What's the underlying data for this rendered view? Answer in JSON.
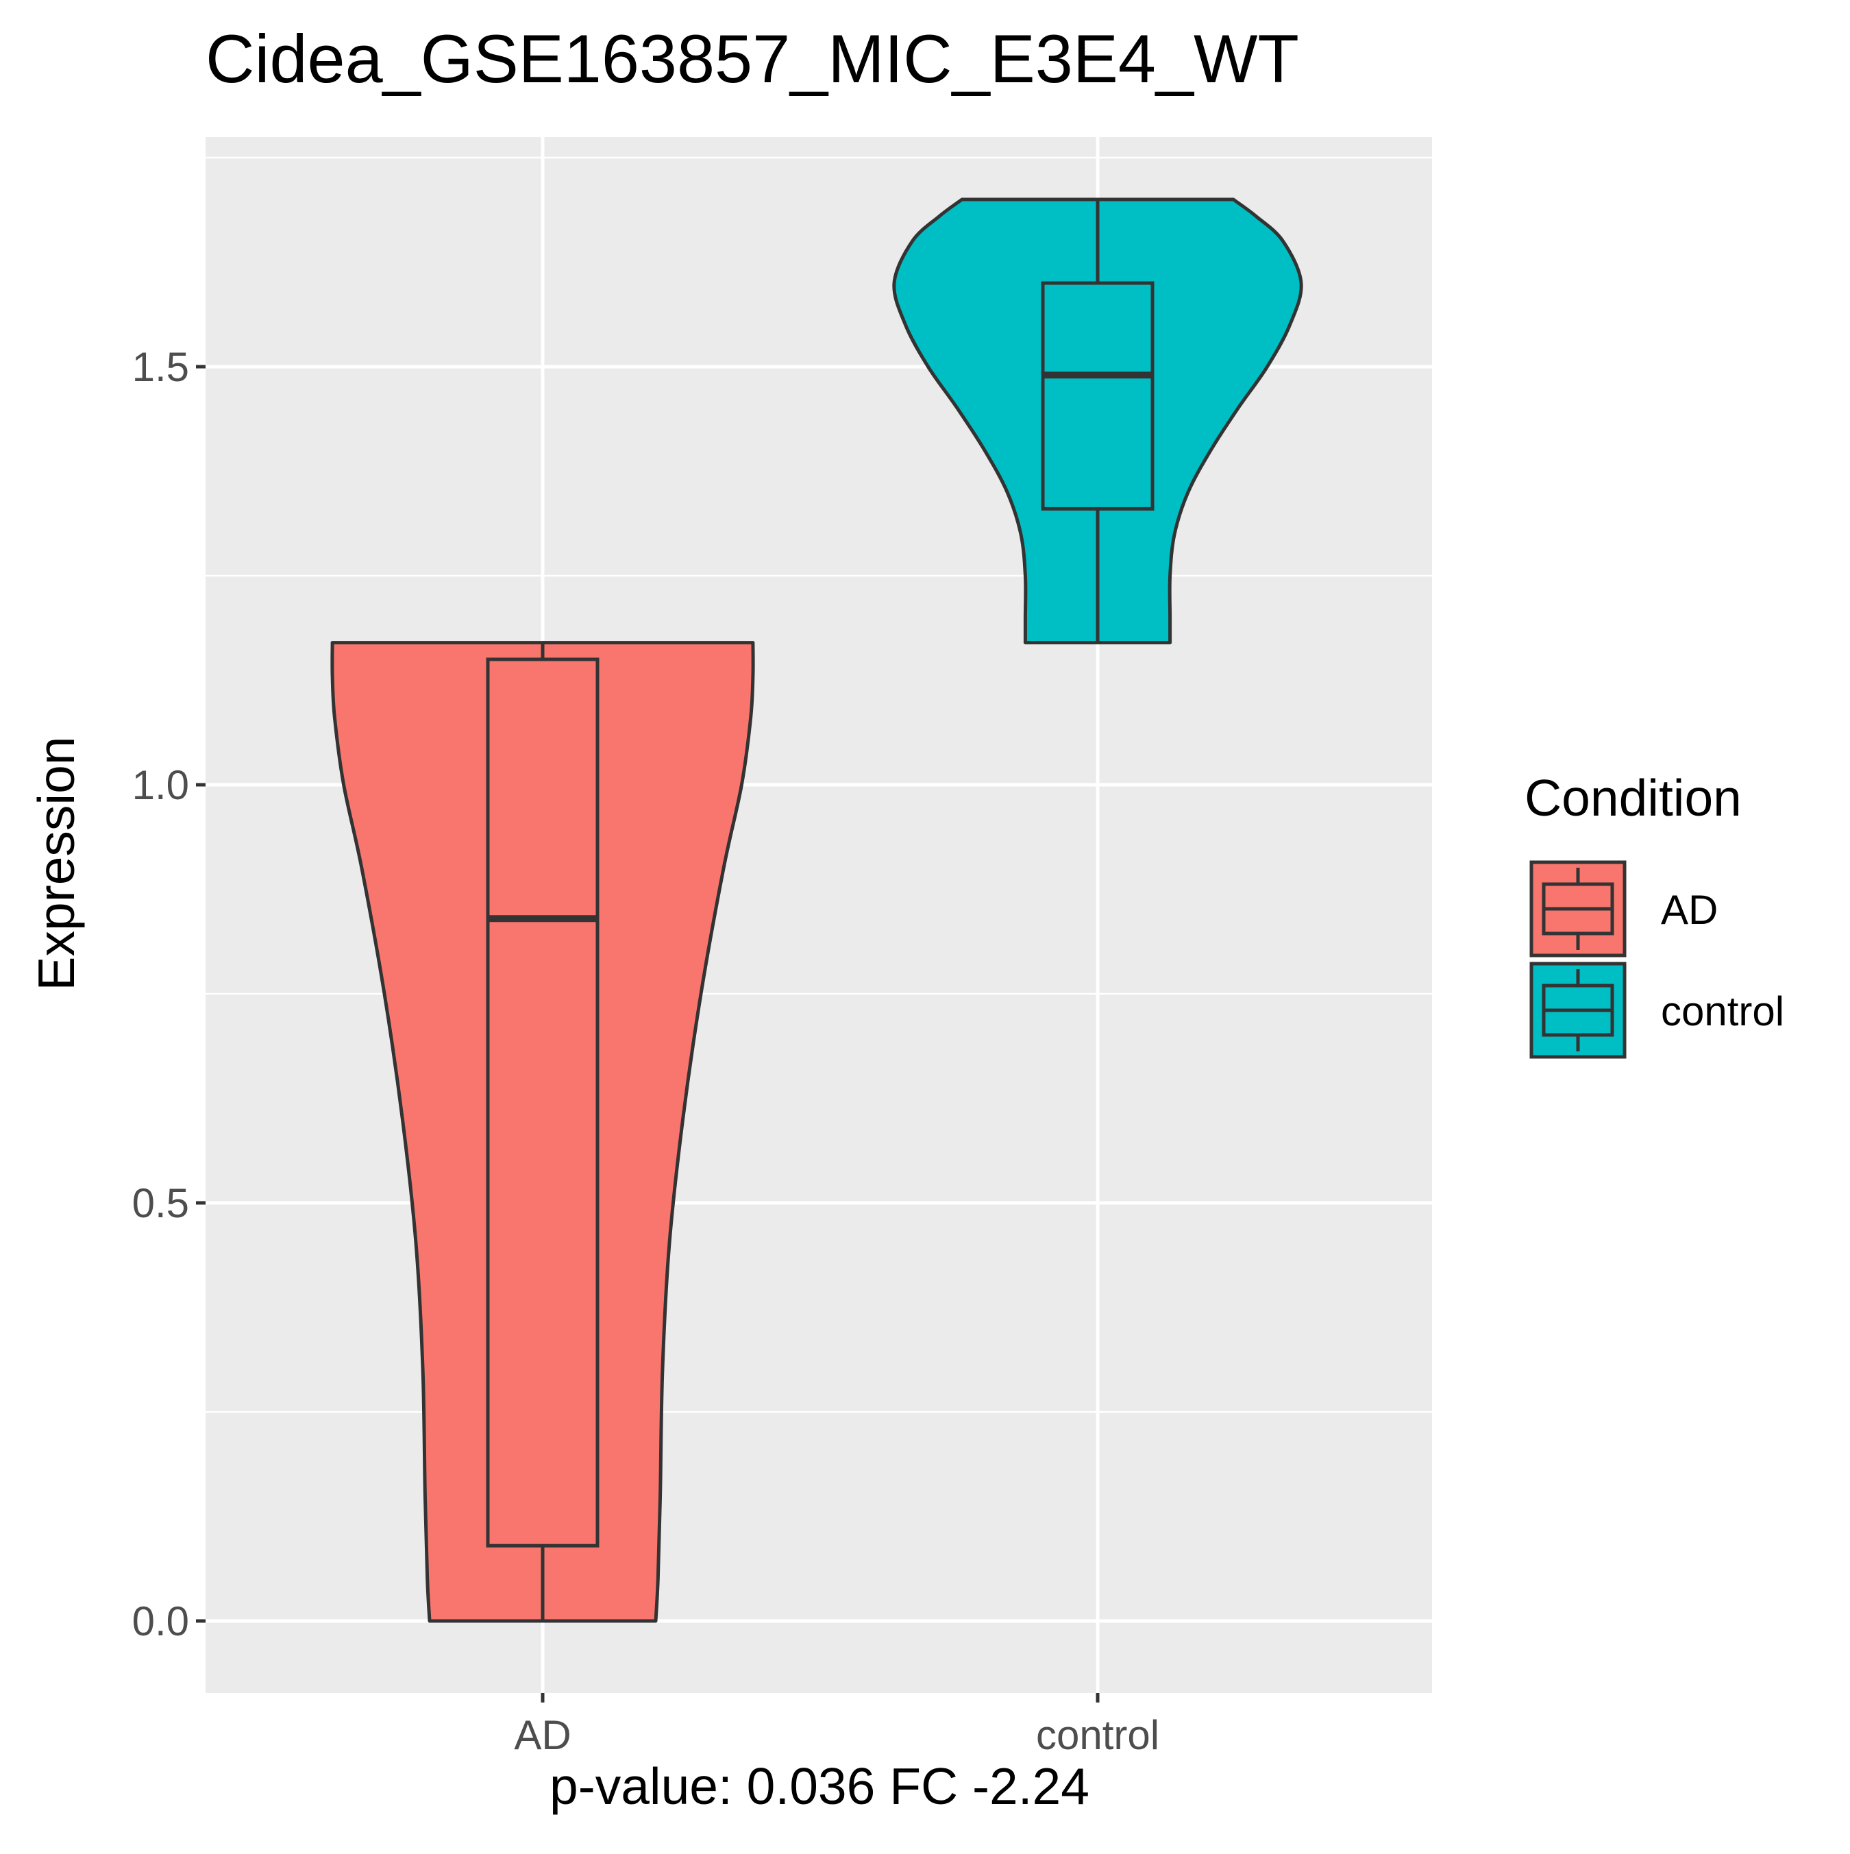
{
  "chart_data": {
    "type": "violin",
    "title": "Cidea_GSE163857_MIC_E3E4_WT",
    "xlabel": "p-value: 0.036 FC -2.24",
    "ylabel": "Expression",
    "categories": [
      "AD",
      "control"
    ],
    "ylim": [
      -0.08,
      1.75
    ],
    "yticks": [
      0.0,
      0.5,
      1.0,
      1.5
    ],
    "ytick_labels": [
      "0.0",
      "0.5",
      "1.0",
      "1.5"
    ],
    "grid": true,
    "legend": {
      "title": "Condition",
      "position": "right",
      "entries": [
        "AD",
        "control"
      ]
    },
    "colors": {
      "AD": "#f8766d",
      "control": "#00bfc4",
      "panel_background": "#ebebeb",
      "grid": "#ffffff",
      "outline": "#333333"
    },
    "series": [
      {
        "name": "AD",
        "box": {
          "min": 0.0,
          "q1": 0.09,
          "median": 0.84,
          "q3": 1.15,
          "max": 1.17
        },
        "violin": {
          "y": [
            0.0,
            0.05,
            0.15,
            0.3,
            0.45,
            0.6,
            0.75,
            0.9,
            1.0,
            1.08,
            1.13,
            1.17
          ],
          "density": [
            0.5,
            0.51,
            0.52,
            0.53,
            0.56,
            0.62,
            0.7,
            0.8,
            0.88,
            0.92,
            0.93,
            0.93
          ]
        }
      },
      {
        "name": "control",
        "box": {
          "min": 1.17,
          "q1": 1.33,
          "median": 1.49,
          "q3": 1.6,
          "max": 1.7
        },
        "violin": {
          "y": [
            1.17,
            1.2,
            1.25,
            1.3,
            1.35,
            1.4,
            1.45,
            1.5,
            1.55,
            1.6,
            1.65,
            1.68,
            1.7
          ],
          "density": [
            0.32,
            0.32,
            0.32,
            0.34,
            0.4,
            0.5,
            0.62,
            0.75,
            0.85,
            0.9,
            0.82,
            0.7,
            0.6
          ]
        }
      }
    ]
  }
}
